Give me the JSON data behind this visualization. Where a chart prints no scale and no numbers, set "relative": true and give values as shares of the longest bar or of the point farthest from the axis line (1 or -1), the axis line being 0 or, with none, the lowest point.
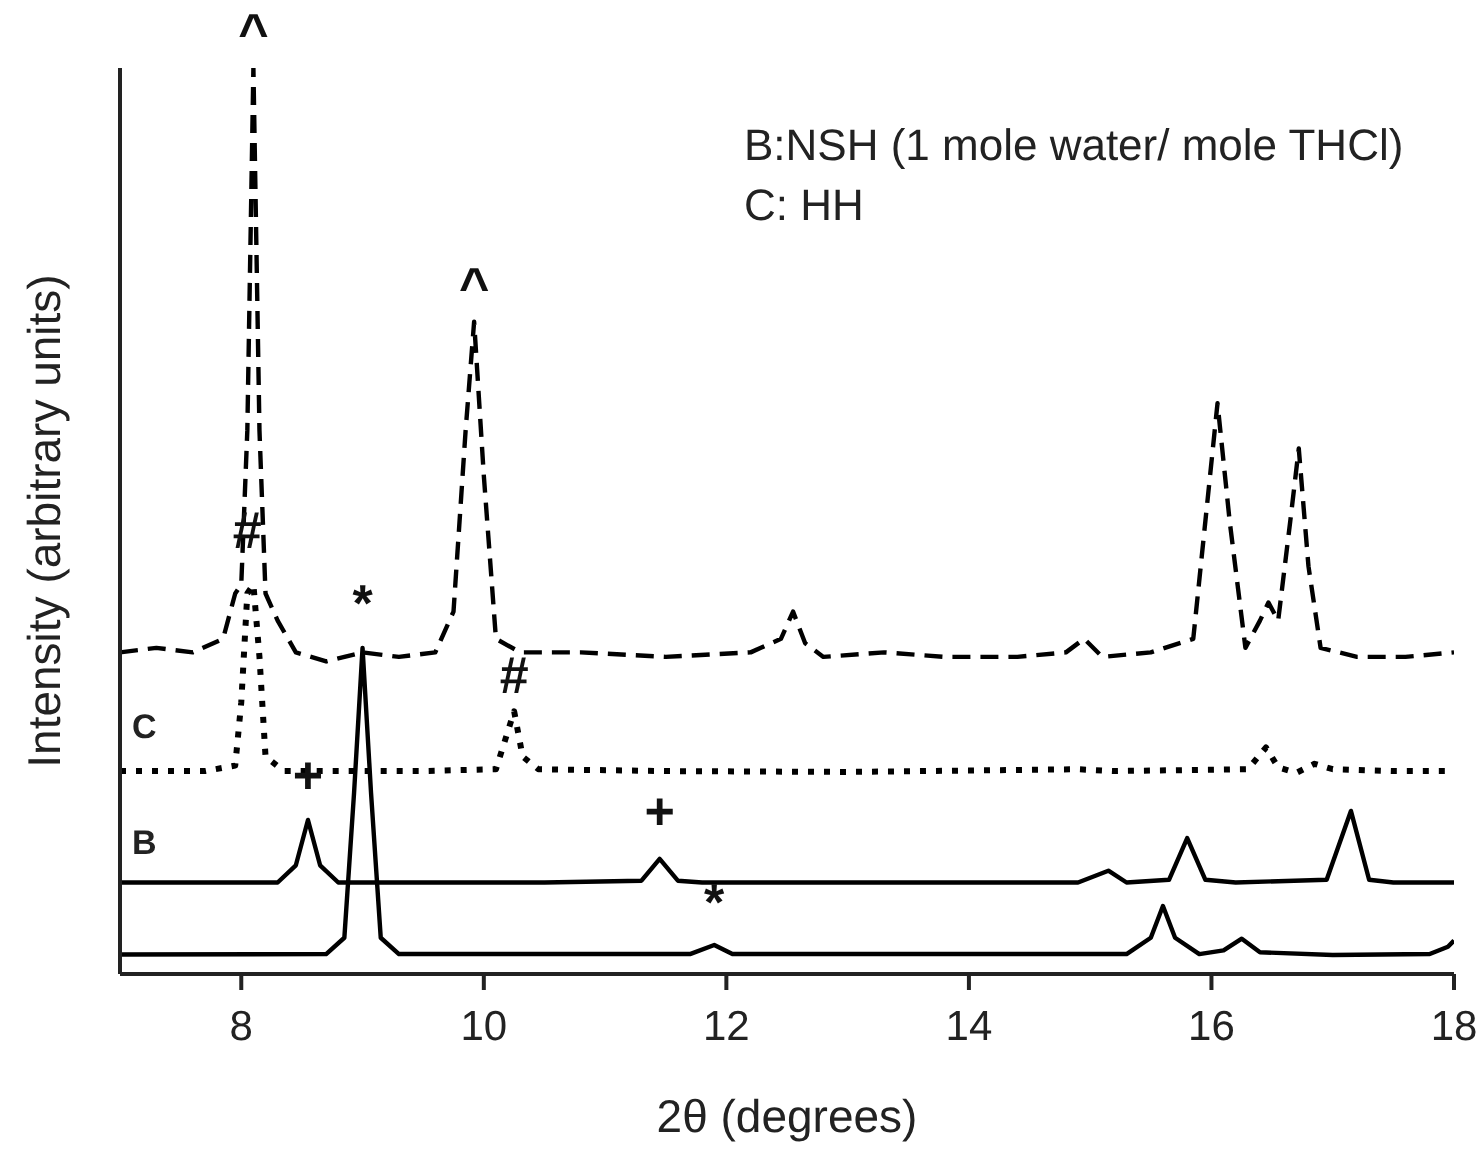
{
  "chart_data": {
    "type": "line",
    "relative": true,
    "xlabel": "2θ (degrees)",
    "ylabel": "Intensity (arbitrary units)",
    "xlim": [
      7,
      18
    ],
    "xticks": [
      8,
      10,
      12,
      14,
      16,
      18
    ],
    "marker": "none",
    "tick_labels": "x",
    "series": [
      {
        "color": "#000000",
        "line_style": "dashed",
        "x": [
          7.0,
          7.3,
          7.6,
          7.85,
          7.95,
          8.0,
          8.05,
          8.1,
          8.15,
          8.2,
          8.3,
          8.45,
          8.7,
          9.0,
          9.3,
          9.6,
          9.75,
          9.85,
          9.92,
          10.0,
          10.1,
          10.3,
          10.8,
          11.5,
          12.2,
          12.45,
          12.55,
          12.65,
          12.8,
          13.3,
          13.8,
          14.4,
          14.8,
          14.95,
          15.1,
          15.5,
          15.85,
          15.95,
          16.05,
          16.15,
          16.28,
          16.4,
          16.47,
          16.55,
          16.65,
          16.72,
          16.8,
          16.9,
          17.2,
          17.6,
          18.0
        ],
        "values": [
          0.355,
          0.36,
          0.355,
          0.37,
          0.42,
          0.43,
          0.6,
          1.0,
          0.6,
          0.42,
          0.39,
          0.355,
          0.345,
          0.355,
          0.35,
          0.355,
          0.4,
          0.6,
          0.72,
          0.55,
          0.37,
          0.355,
          0.355,
          0.35,
          0.355,
          0.37,
          0.4,
          0.365,
          0.35,
          0.355,
          0.35,
          0.35,
          0.355,
          0.37,
          0.35,
          0.355,
          0.37,
          0.5,
          0.63,
          0.5,
          0.36,
          0.39,
          0.41,
          0.39,
          0.5,
          0.58,
          0.45,
          0.36,
          0.35,
          0.35,
          0.355
        ]
      },
      {
        "color": "#000000",
        "line_style": "dotted",
        "x": [
          7.0,
          7.7,
          7.95,
          8.0,
          8.05,
          8.1,
          8.15,
          8.2,
          8.35,
          9.5,
          10.1,
          10.18,
          10.25,
          10.32,
          10.45,
          11.5,
          13.0,
          14.9,
          15.2,
          16.3,
          16.45,
          16.55,
          16.7,
          16.85,
          17.0,
          17.5,
          18.0
        ],
        "values": [
          0.224,
          0.224,
          0.23,
          0.3,
          0.42,
          0.43,
          0.35,
          0.24,
          0.224,
          0.224,
          0.226,
          0.26,
          0.29,
          0.24,
          0.226,
          0.224,
          0.223,
          0.226,
          0.224,
          0.226,
          0.25,
          0.228,
          0.222,
          0.232,
          0.226,
          0.224,
          0.224
        ]
      },
      {
        "color": "#000000",
        "line_style": "solid",
        "x": [
          7.0,
          8.3,
          8.45,
          8.55,
          8.65,
          8.8,
          10.5,
          11.3,
          11.45,
          11.6,
          11.8,
          14.9,
          15.15,
          15.3,
          15.65,
          15.8,
          15.95,
          16.2,
          16.95,
          17.15,
          17.3,
          17.5,
          18.0
        ],
        "values": [
          0.101,
          0.101,
          0.12,
          0.17,
          0.12,
          0.101,
          0.101,
          0.103,
          0.127,
          0.103,
          0.101,
          0.101,
          0.114,
          0.101,
          0.104,
          0.15,
          0.104,
          0.101,
          0.104,
          0.18,
          0.104,
          0.101,
          0.101
        ]
      },
      {
        "color": "#000000",
        "line_style": "solid",
        "x": [
          7.0,
          8.7,
          8.85,
          8.93,
          9.0,
          9.07,
          9.15,
          9.3,
          11.7,
          11.9,
          12.05,
          15.3,
          15.5,
          15.6,
          15.7,
          15.9,
          16.1,
          16.25,
          16.4,
          17.0,
          17.8,
          17.95,
          18.0
        ],
        "values": [
          0.0215,
          0.022,
          0.04,
          0.2,
          0.36,
          0.2,
          0.04,
          0.022,
          0.022,
          0.032,
          0.022,
          0.022,
          0.04,
          0.075,
          0.04,
          0.022,
          0.026,
          0.039,
          0.024,
          0.021,
          0.022,
          0.03,
          0.037
        ]
      }
    ],
    "annotations": [
      "B:NSH (1 mole water/ mole THCl)",
      "C: HH",
      "C",
      "B",
      {
        "text": "^",
        "x": 8.1,
        "y": 1.0
      },
      {
        "text": "^",
        "x": 9.92,
        "y": 0.72
      },
      {
        "text": "#",
        "x": 8.05,
        "y": 0.45
      },
      {
        "text": "#",
        "x": 10.25,
        "y": 0.29
      },
      {
        "text": "*",
        "x": 9.0,
        "y": 0.37
      },
      {
        "text": "*",
        "x": 11.9,
        "y": 0.04
      },
      {
        "text": "+",
        "x": 8.55,
        "y": 0.18
      },
      {
        "text": "+",
        "x": 11.45,
        "y": 0.14
      }
    ]
  }
}
